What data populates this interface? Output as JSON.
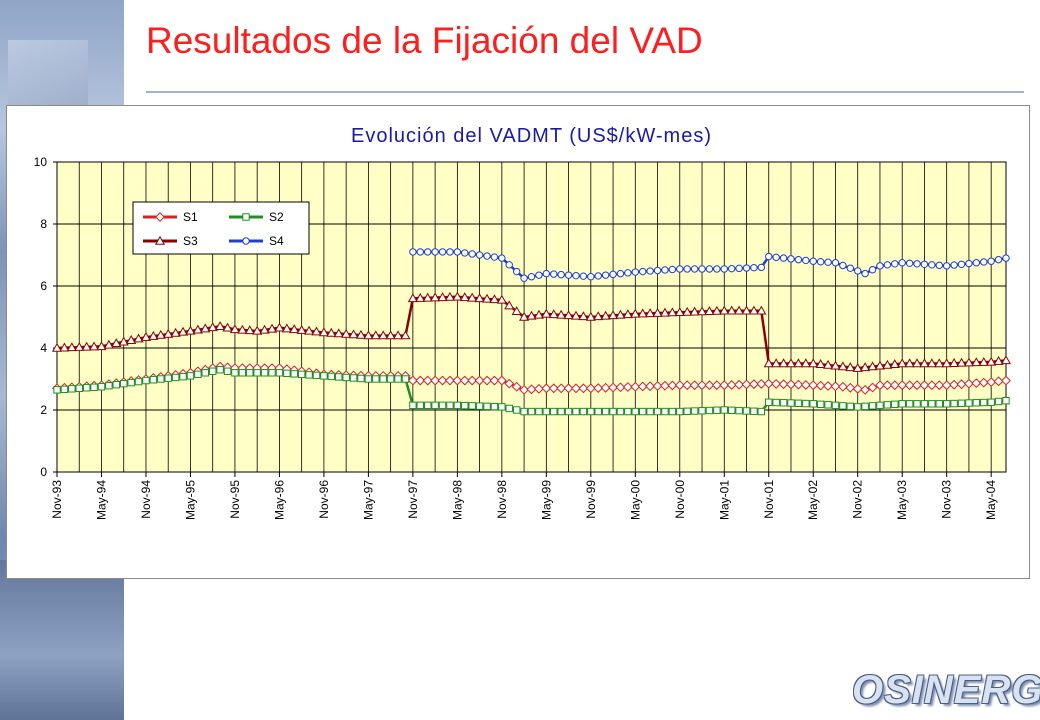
{
  "page": {
    "title": "Resultados de la Fijación del VAD",
    "brand": "OSINERG"
  },
  "chart_data": {
    "type": "line",
    "title": "Evolución del VADMT (US$/kW-mes)",
    "xlabel": "",
    "ylabel": "",
    "ylim": [
      0,
      10
    ],
    "yticks": [
      0,
      2,
      4,
      6,
      8,
      10
    ],
    "xticks": [
      "Nov-93",
      "May-94",
      "Nov-94",
      "May-95",
      "Nov-95",
      "May-96",
      "Nov-96",
      "May-97",
      "Nov-97",
      "May-98",
      "Nov-98",
      "May-99",
      "Nov-99",
      "May-00",
      "Nov-00",
      "May-01",
      "Nov-01",
      "May-02",
      "Nov-02",
      "May-03",
      "Nov-03",
      "May-04"
    ],
    "grid": true,
    "legend_position": "top-left",
    "x_start": "Nov-93",
    "x_end": "Jul-04",
    "series": [
      {
        "name": "S1",
        "color": "#dd2020",
        "marker": "diamond",
        "points": [
          [
            "Nov-93",
            2.7
          ],
          [
            "May-94",
            2.8
          ],
          [
            "Nov-94",
            3.0
          ],
          [
            "May-95",
            3.2
          ],
          [
            "Sep-95",
            3.4
          ],
          [
            "Nov-95",
            3.35
          ],
          [
            "May-96",
            3.35
          ],
          [
            "Nov-96",
            3.15
          ],
          [
            "May-97",
            3.1
          ],
          [
            "Oct-97",
            3.1
          ],
          [
            "Nov-97",
            2.95
          ],
          [
            "May-98",
            2.95
          ],
          [
            "Nov-98",
            2.95
          ],
          [
            "Feb-99",
            2.65
          ],
          [
            "May-99",
            2.7
          ],
          [
            "Nov-99",
            2.7
          ],
          [
            "May-00",
            2.75
          ],
          [
            "Nov-00",
            2.8
          ],
          [
            "May-01",
            2.8
          ],
          [
            "Nov-01",
            2.85
          ],
          [
            "May-02",
            2.8
          ],
          [
            "Sep-02",
            2.75
          ],
          [
            "Dec-02",
            2.65
          ],
          [
            "Feb-03",
            2.8
          ],
          [
            "May-03",
            2.8
          ],
          [
            "Nov-03",
            2.8
          ],
          [
            "May-04",
            2.9
          ],
          [
            "Jul-04",
            2.95
          ]
        ]
      },
      {
        "name": "S2",
        "color": "#1f8f1f",
        "marker": "square",
        "points": [
          [
            "Nov-93",
            2.65
          ],
          [
            "May-94",
            2.75
          ],
          [
            "Nov-94",
            2.95
          ],
          [
            "May-95",
            3.1
          ],
          [
            "Sep-95",
            3.3
          ],
          [
            "Nov-95",
            3.2
          ],
          [
            "May-96",
            3.2
          ],
          [
            "Nov-96",
            3.1
          ],
          [
            "May-97",
            3.0
          ],
          [
            "Oct-97",
            3.0
          ],
          [
            "Nov-97",
            2.15
          ],
          [
            "May-98",
            2.15
          ],
          [
            "Nov-98",
            2.1
          ],
          [
            "Feb-99",
            1.95
          ],
          [
            "May-99",
            1.95
          ],
          [
            "Nov-99",
            1.95
          ],
          [
            "May-00",
            1.95
          ],
          [
            "Nov-00",
            1.95
          ],
          [
            "May-01",
            2.0
          ],
          [
            "Oct-01",
            1.95
          ],
          [
            "Nov-01",
            2.25
          ],
          [
            "May-02",
            2.2
          ],
          [
            "Nov-02",
            2.1
          ],
          [
            "May-03",
            2.2
          ],
          [
            "Nov-03",
            2.2
          ],
          [
            "May-04",
            2.25
          ],
          [
            "Jul-04",
            2.3
          ]
        ]
      },
      {
        "name": "S3",
        "color": "#8b0000",
        "marker": "triangle",
        "points": [
          [
            "Nov-93",
            4.0
          ],
          [
            "May-94",
            4.05
          ],
          [
            "Nov-94",
            4.35
          ],
          [
            "May-95",
            4.55
          ],
          [
            "Sep-95",
            4.7
          ],
          [
            "Nov-95",
            4.6
          ],
          [
            "Feb-96",
            4.55
          ],
          [
            "May-96",
            4.65
          ],
          [
            "Nov-96",
            4.5
          ],
          [
            "May-97",
            4.4
          ],
          [
            "Oct-97",
            4.4
          ],
          [
            "Nov-97",
            5.6
          ],
          [
            "May-98",
            5.65
          ],
          [
            "Nov-98",
            5.55
          ],
          [
            "Feb-99",
            5.0
          ],
          [
            "May-99",
            5.1
          ],
          [
            "Nov-99",
            5.0
          ],
          [
            "May-00",
            5.1
          ],
          [
            "Nov-00",
            5.15
          ],
          [
            "May-01",
            5.2
          ],
          [
            "Oct-01",
            5.2
          ],
          [
            "Nov-01",
            3.5
          ],
          [
            "May-02",
            3.5
          ],
          [
            "Nov-02",
            3.35
          ],
          [
            "May-03",
            3.5
          ],
          [
            "Nov-03",
            3.5
          ],
          [
            "May-04",
            3.55
          ],
          [
            "Jul-04",
            3.6
          ]
        ]
      },
      {
        "name": "S4",
        "color": "#1f3fd0",
        "marker": "circle",
        "points": [
          [
            "Nov-97",
            7.1
          ],
          [
            "May-98",
            7.1
          ],
          [
            "Nov-98",
            6.9
          ],
          [
            "Feb-99",
            6.25
          ],
          [
            "May-99",
            6.4
          ],
          [
            "Nov-99",
            6.3
          ],
          [
            "May-00",
            6.45
          ],
          [
            "Nov-00",
            6.55
          ],
          [
            "May-01",
            6.55
          ],
          [
            "Oct-01",
            6.6
          ],
          [
            "Nov-01",
            6.95
          ],
          [
            "May-02",
            6.8
          ],
          [
            "Aug-02",
            6.75
          ],
          [
            "Dec-02",
            6.4
          ],
          [
            "Feb-03",
            6.65
          ],
          [
            "May-03",
            6.75
          ],
          [
            "Nov-03",
            6.65
          ],
          [
            "May-04",
            6.8
          ],
          [
            "Jul-04",
            6.9
          ]
        ]
      }
    ]
  }
}
